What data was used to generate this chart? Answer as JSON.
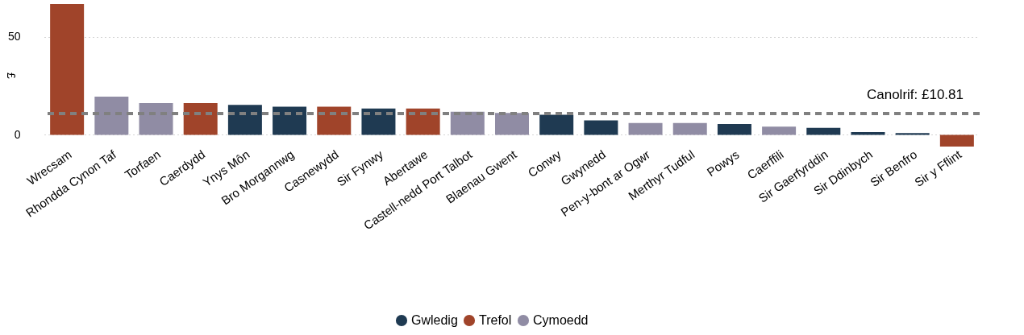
{
  "chart_data": {
    "type": "bar",
    "ylabel": "£",
    "categories": [
      "Wrecsam",
      "Rhondda Cynon Taf",
      "Torfaen",
      "Caerdydd",
      "Ynys Môn",
      "Bro Morgannwg",
      "Casnewydd",
      "Sir Fynwy",
      "Abertawe",
      "Castell-nedd Port Talbot",
      "Blaenau Gwent",
      "Conwy",
      "Gwynedd",
      "Pen-y-bont ar Ogwr",
      "Merthyr Tudful",
      "Powys",
      "Caerffili",
      "Sir Gaerfyrddin",
      "Sir Ddinbych",
      "Sir Benfro",
      "Sir y Fflint"
    ],
    "series": [
      {
        "name": "Gwledig",
        "color": "#1f3a52",
        "values": [
          null,
          null,
          null,
          null,
          15.3,
          14.3,
          null,
          13.4,
          null,
          null,
          null,
          10.2,
          7.4,
          null,
          null,
          5.5,
          null,
          3.5,
          1.4,
          0.9,
          null
        ]
      },
      {
        "name": "Trefol",
        "color": "#a0442a",
        "values": [
          66.7,
          null,
          null,
          16.2,
          null,
          null,
          14.3,
          null,
          13.4,
          null,
          null,
          null,
          null,
          null,
          null,
          null,
          null,
          null,
          null,
          null,
          -6.0
        ]
      },
      {
        "name": "Cymoedd",
        "color": "#908ca4",
        "values": [
          null,
          19.5,
          16.2,
          null,
          null,
          null,
          null,
          null,
          null,
          11.8,
          11.1,
          null,
          null,
          6.0,
          6.0,
          null,
          4.2,
          null,
          null,
          null,
          null
        ]
      }
    ],
    "ylim": [
      -6,
      66.7
    ],
    "yticks": [
      0,
      50
    ],
    "grid": "y",
    "legend": "bottom",
    "ref_lines": [
      {
        "axis": "y",
        "value": 10.81,
        "label": "Canolrif: £10.81",
        "color": "#808080",
        "line_style": "dashed"
      }
    ]
  }
}
